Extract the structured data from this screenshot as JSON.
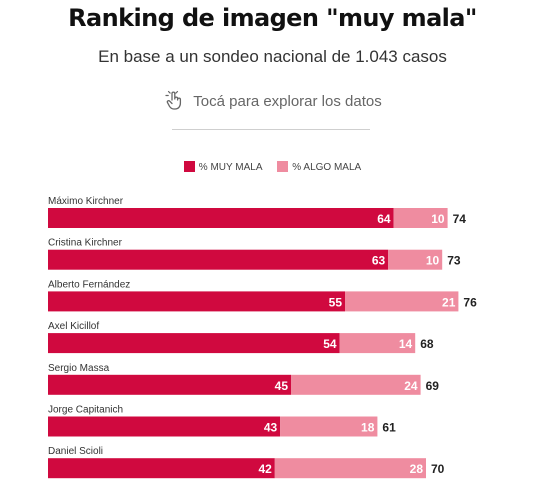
{
  "header": {
    "title": "Ranking de imagen \"muy mala\"",
    "subtitle": "En base a un sondeo nacional de 1.043 casos",
    "hint": "Tocá para explorar los datos"
  },
  "colors": {
    "muy_mala": "#d0093f",
    "algo_mala": "#ef8ca0"
  },
  "chart_data": {
    "type": "bar",
    "orientation": "horizontal",
    "stacked": true,
    "categories": [
      "Máximo Kirchner",
      "Cristina Kirchner",
      "Alberto Fernández",
      "Axel Kicillof",
      "Sergio Massa",
      "Jorge Capitanich",
      "Daniel Scioli"
    ],
    "series": [
      {
        "name": "% MUY MALA",
        "values": [
          64,
          63,
          55,
          54,
          45,
          43,
          42
        ]
      },
      {
        "name": "% ALGO MALA",
        "values": [
          10,
          10,
          21,
          14,
          24,
          18,
          28
        ]
      }
    ],
    "totals": [
      74,
      73,
      76,
      68,
      69,
      61,
      70
    ],
    "legend_position": "top",
    "grid": false
  }
}
